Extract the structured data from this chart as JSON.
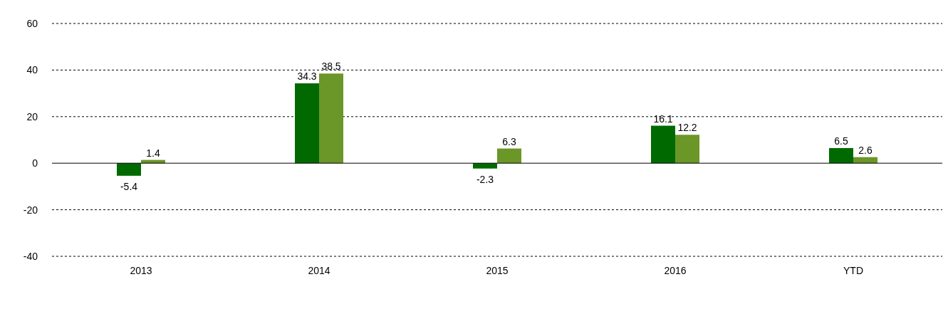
{
  "chart_data": {
    "type": "bar",
    "categories": [
      "2013",
      "2014",
      "2015",
      "2016",
      "YTD"
    ],
    "series": [
      {
        "color": "#006a00",
        "values": [
          -5.4,
          34.3,
          -2.3,
          16.1,
          6.5
        ]
      },
      {
        "color": "#6b9628",
        "values": [
          1.4,
          38.5,
          6.3,
          12.2,
          2.6
        ]
      }
    ],
    "ylim": [
      -40,
      60
    ],
    "yticks": [
      -40,
      -20,
      0,
      20,
      40,
      60
    ],
    "grid": "y",
    "line_style": "dotted",
    "data_labels": true
  }
}
